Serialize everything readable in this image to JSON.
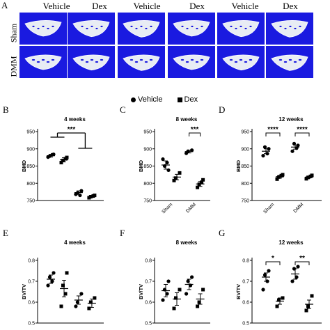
{
  "panel_letters": [
    "A",
    "B",
    "C",
    "D",
    "E",
    "F",
    "G"
  ],
  "panel_a": {
    "column_titles": [
      "Vehicle",
      "Dex",
      "Vehicle",
      "Dex",
      "Vehicle",
      "Dex"
    ],
    "row_labels": [
      "Sham",
      "DMM"
    ],
    "background_color": "#1a1ae0"
  },
  "legend": {
    "items": [
      {
        "marker": "circle",
        "label": "Vehicle"
      },
      {
        "marker": "square",
        "label": "Dex"
      }
    ]
  },
  "chart_data": [
    {
      "panel": "B",
      "type": "scatter",
      "title": "4 weeks",
      "ylabel": "BMD",
      "categories": [
        "Sham",
        "DMM"
      ],
      "ylim": [
        750,
        950
      ],
      "yticks": [
        750,
        800,
        850,
        900,
        950
      ],
      "show_xticklabels": false,
      "series": [
        {
          "marker": "circle",
          "groups": [
            {
              "x": 0,
              "mean": 880,
              "sem": 4,
              "points": [
                876,
                884,
                879,
                883
              ]
            },
            {
              "x": 1,
              "mean": 773,
              "sem": 5,
              "points": [
                768,
                778,
                772,
                765
              ]
            }
          ]
        },
        {
          "marker": "square",
          "groups": [
            {
              "x": 0,
              "mean": 868,
              "sem": 6,
              "points": [
                860,
                875,
                866,
                871
              ]
            },
            {
              "x": 1,
              "mean": 762,
              "sem": 3,
              "points": [
                758,
                765,
                761,
                763
              ]
            }
          ]
        }
      ],
      "annotations": [
        {
          "text": "***",
          "type": "group-bracket"
        }
      ]
    },
    {
      "panel": "C",
      "type": "scatter",
      "title": "8 weeks",
      "ylabel": "BMD",
      "categories": [
        "Sham",
        "DMM"
      ],
      "ylim": [
        750,
        950
      ],
      "yticks": [
        750,
        800,
        850,
        900,
        950
      ],
      "show_xticklabels": true,
      "series": [
        {
          "marker": "circle",
          "groups": [
            {
              "x": 0,
              "mean": 853,
              "sem": 12,
              "points": [
                870,
                838,
                850,
                860
              ]
            },
            {
              "x": 1,
              "mean": 892,
              "sem": 4,
              "points": [
                887,
                896,
                893
              ]
            }
          ]
        },
        {
          "marker": "square",
          "groups": [
            {
              "x": 0,
              "mean": 818,
              "sem": 8,
              "points": [
                808,
                830,
                815
              ]
            },
            {
              "x": 1,
              "mean": 798,
              "sem": 7,
              "points": [
                788,
                810,
                797,
                803
              ]
            }
          ]
        }
      ],
      "annotations": [
        {
          "text": "***",
          "between": [
            "DMM-Vehicle",
            "DMM-Dex"
          ]
        }
      ]
    },
    {
      "panel": "D",
      "type": "scatter",
      "title": "12 weeks",
      "ylabel": "BMD",
      "categories": [
        "Sham",
        "DMM"
      ],
      "ylim": [
        750,
        950
      ],
      "yticks": [
        750,
        800,
        850,
        900,
        950
      ],
      "show_xticklabels": true,
      "series": [
        {
          "marker": "circle",
          "groups": [
            {
              "x": 0,
              "mean": 893,
              "sem": 7,
              "points": [
                880,
                900,
                905,
                886
              ]
            },
            {
              "x": 1,
              "mean": 905,
              "sem": 6,
              "points": [
                893,
                910,
                915,
                902
              ]
            }
          ]
        },
        {
          "marker": "square",
          "groups": [
            {
              "x": 0,
              "mean": 819,
              "sem": 4,
              "points": [
                812,
                825,
                818,
                822
              ]
            },
            {
              "x": 1,
              "mean": 818,
              "sem": 3,
              "points": [
                813,
                823,
                817,
                820
              ]
            }
          ]
        }
      ],
      "annotations": [
        {
          "text": "****",
          "between": [
            "Sham-Vehicle",
            "Sham-Dex"
          ]
        },
        {
          "text": "****",
          "between": [
            "DMM-Vehicle",
            "DMM-Dex"
          ]
        }
      ]
    },
    {
      "panel": "E",
      "type": "scatter",
      "title": "4 weeks",
      "ylabel": "BV/TV",
      "categories": [
        "Sham",
        "DMM"
      ],
      "ylim": [
        0.5,
        0.8
      ],
      "yticks": [
        0.5,
        0.6,
        0.7,
        0.8
      ],
      "show_xticklabels": false,
      "series": [
        {
          "marker": "circle",
          "groups": [
            {
              "x": 0,
              "mean": 0.71,
              "sem": 0.02,
              "points": [
                0.68,
                0.74,
                0.72,
                0.7
              ]
            },
            {
              "x": 1,
              "mean": 0.61,
              "sem": 0.02,
              "points": [
                0.58,
                0.64,
                0.6
              ]
            }
          ]
        },
        {
          "marker": "square",
          "groups": [
            {
              "x": 0,
              "mean": 0.665,
              "sem": 0.04,
              "points": [
                0.58,
                0.74,
                0.68,
                0.64
              ]
            },
            {
              "x": 1,
              "mean": 0.595,
              "sem": 0.02,
              "points": [
                0.57,
                0.62,
                0.6
              ]
            }
          ]
        }
      ],
      "annotations": []
    },
    {
      "panel": "F",
      "type": "scatter",
      "title": "8 weeks",
      "ylabel": "BV/TV",
      "categories": [
        "Sham",
        "DMM"
      ],
      "ylim": [
        0.5,
        0.8
      ],
      "yticks": [
        0.5,
        0.6,
        0.7,
        0.8
      ],
      "show_xticklabels": false,
      "series": [
        {
          "marker": "circle",
          "groups": [
            {
              "x": 0,
              "mean": 0.655,
              "sem": 0.03,
              "points": [
                0.61,
                0.7,
                0.66,
                0.64
              ]
            },
            {
              "x": 1,
              "mean": 0.685,
              "sem": 0.025,
              "points": [
                0.64,
                0.72,
                0.7,
                0.68
              ]
            }
          ]
        },
        {
          "marker": "square",
          "groups": [
            {
              "x": 0,
              "mean": 0.615,
              "sem": 0.03,
              "points": [
                0.57,
                0.66,
                0.62
              ]
            },
            {
              "x": 1,
              "mean": 0.615,
              "sem": 0.025,
              "points": [
                0.58,
                0.66,
                0.6
              ]
            }
          ]
        }
      ],
      "annotations": []
    },
    {
      "panel": "G",
      "type": "scatter",
      "title": "12 weeks",
      "ylabel": "BV/TV",
      "categories": [
        "Sham",
        "DMM"
      ],
      "ylim": [
        0.5,
        0.8
      ],
      "yticks": [
        0.5,
        0.6,
        0.7,
        0.8
      ],
      "show_xticklabels": false,
      "series": [
        {
          "marker": "circle",
          "groups": [
            {
              "x": 0,
              "mean": 0.72,
              "sem": 0.02,
              "points": [
                0.66,
                0.75,
                0.73,
                0.7
              ]
            },
            {
              "x": 1,
              "mean": 0.735,
              "sem": 0.025,
              "points": [
                0.7,
                0.77,
                0.76,
                0.72
              ]
            }
          ]
        },
        {
          "marker": "square",
          "groups": [
            {
              "x": 0,
              "mean": 0.605,
              "sem": 0.015,
              "points": [
                0.58,
                0.62,
                0.61
              ]
            },
            {
              "x": 1,
              "mean": 0.59,
              "sem": 0.02,
              "points": [
                0.56,
                0.63,
                0.58
              ]
            }
          ]
        }
      ],
      "annotations": [
        {
          "text": "*",
          "between": [
            "Sham-Vehicle",
            "Sham-Dex"
          ]
        },
        {
          "text": "**",
          "between": [
            "DMM-Vehicle",
            "DMM-Dex"
          ]
        }
      ]
    }
  ]
}
